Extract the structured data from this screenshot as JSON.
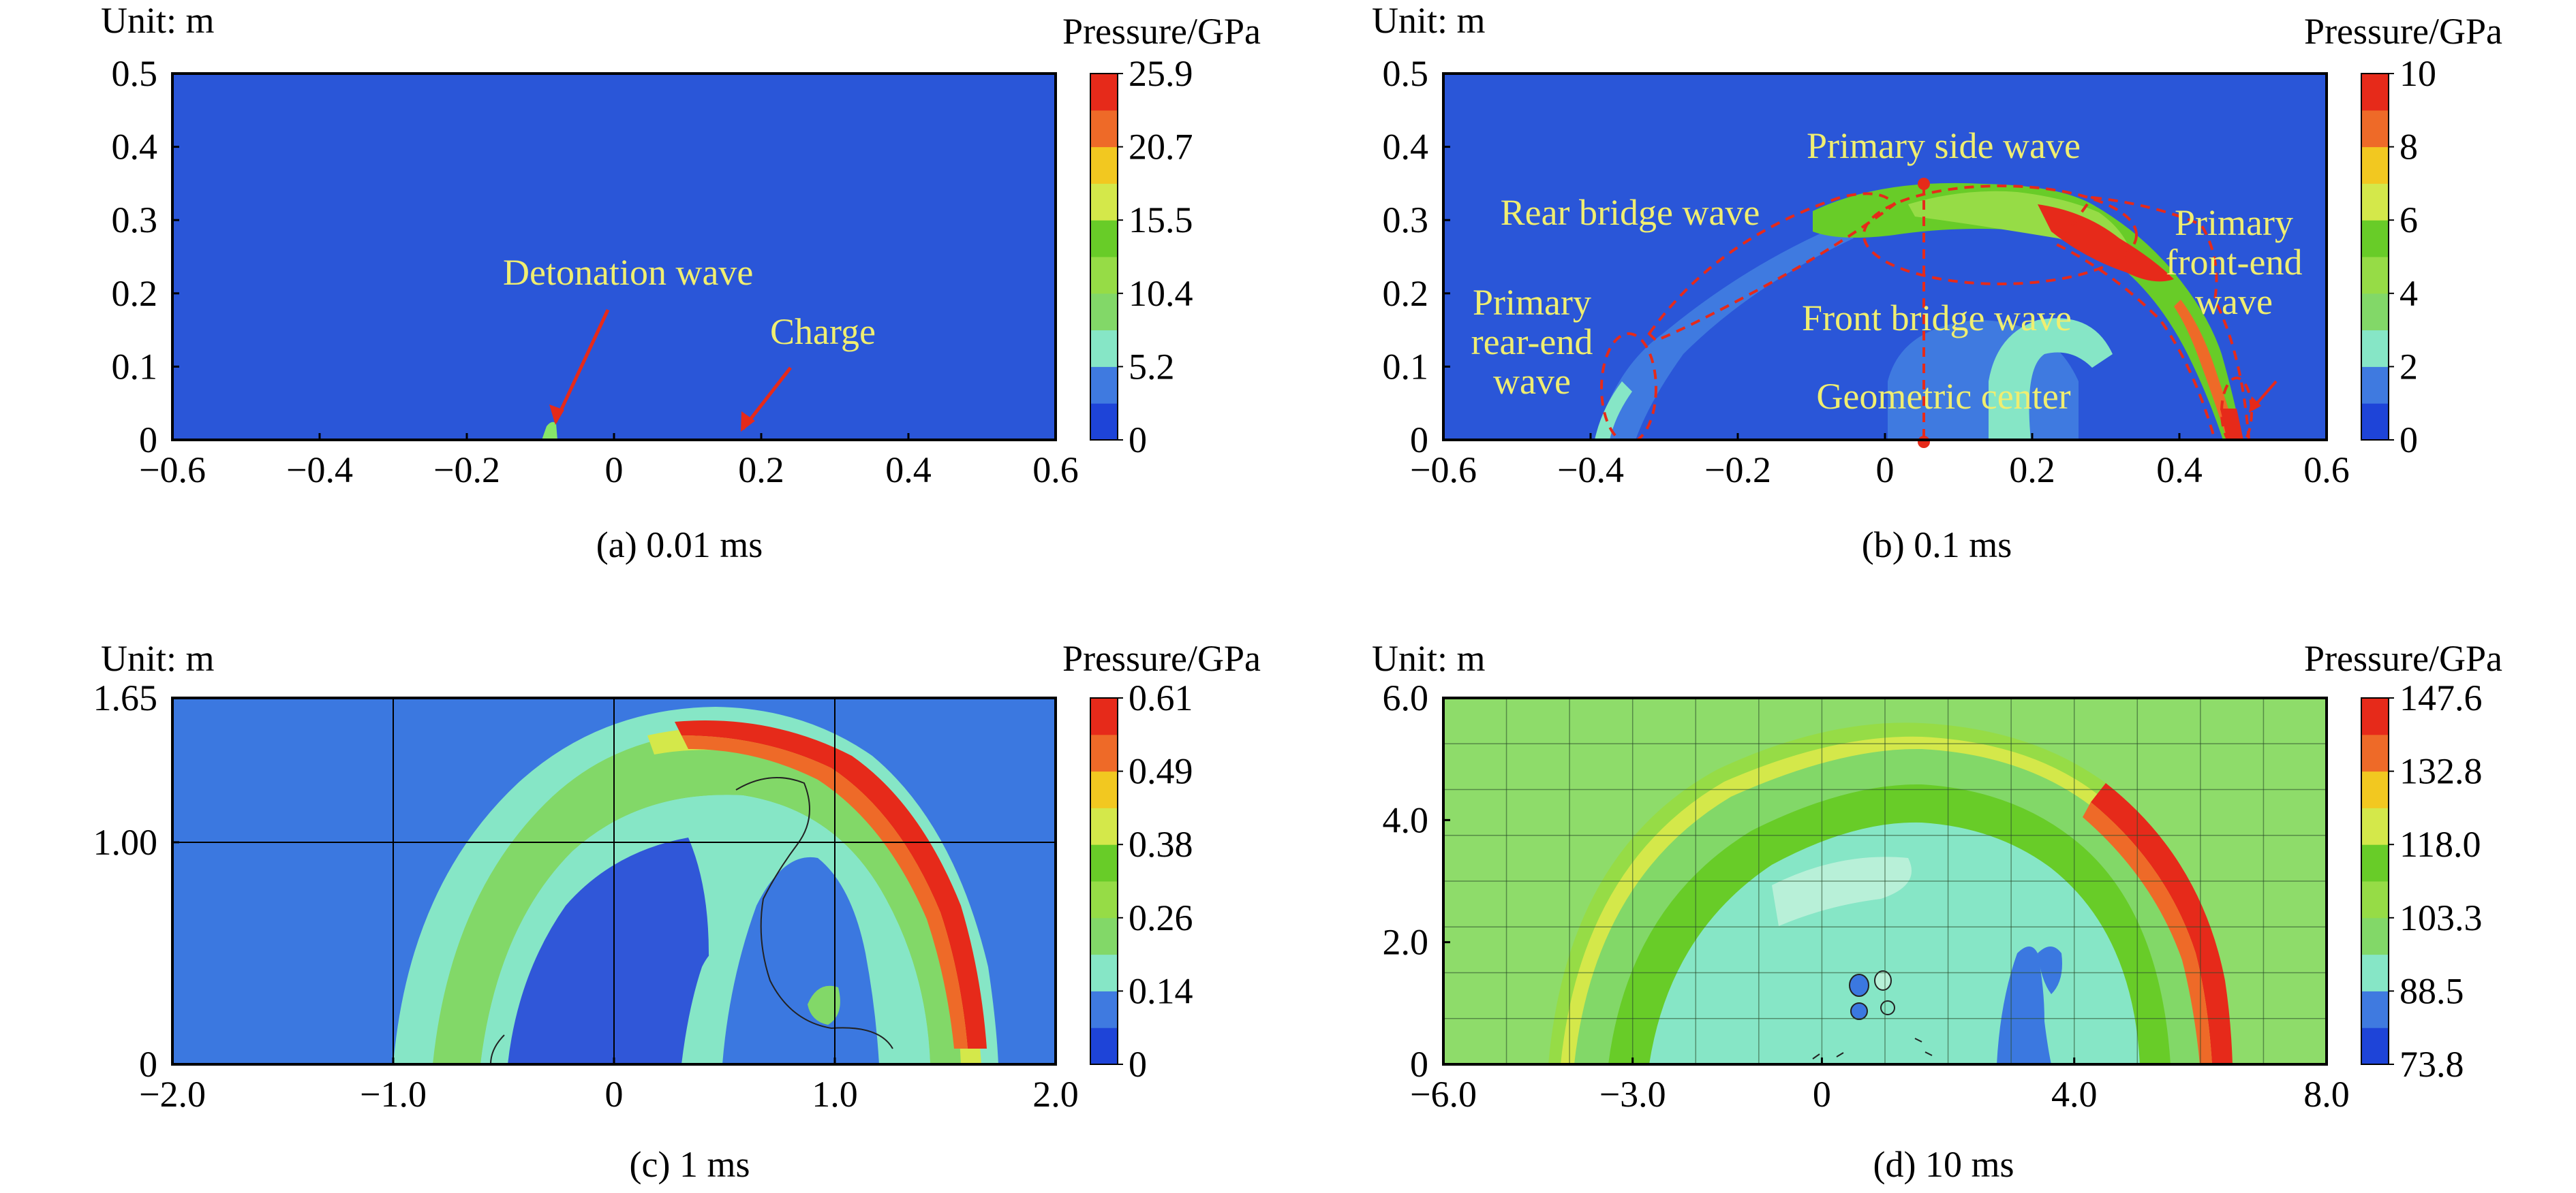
{
  "chart_data": [
    {
      "type": "heatmap",
      "caption": "(a) 0.01 ms",
      "unit_label": "Unit: m",
      "colorbar": {
        "title": "Pressure/GPa",
        "ticks": [
          "0",
          "5.2",
          "10.4",
          "15.5",
          "20.7",
          "25.9"
        ],
        "colors": [
          "#1e44d8",
          "#3f7ae0",
          "#86e6c6",
          "#82d868",
          "#96dc46",
          "#68cc28",
          "#d4e84a",
          "#f2c820",
          "#ee6a28",
          "#e62a1a"
        ]
      },
      "background_color": "#2a56d8",
      "xlim": [
        -0.6,
        0.6
      ],
      "ylim": [
        0,
        0.5
      ],
      "x_ticks": [
        "−0.6",
        "−0.4",
        "−0.2",
        "0",
        "0.2",
        "0.4",
        "0.6"
      ],
      "y_ticks": [
        "0",
        "0.1",
        "0.2",
        "0.3",
        "0.4",
        "0.5"
      ],
      "annotations": [
        {
          "text": "Detonation wave",
          "arrow_to": [
            -0.085,
            0.02
          ]
        },
        {
          "text": "Charge",
          "arrow_to": [
            0.165,
            0.01
          ]
        }
      ],
      "features": [
        {
          "name": "detonation-front",
          "x": -0.09,
          "y": 0.0,
          "level": "15.5"
        }
      ]
    },
    {
      "type": "heatmap",
      "caption": "(b) 0.1 ms",
      "unit_label": "Unit: m",
      "colorbar": {
        "title": "Pressure/GPa",
        "ticks": [
          "0",
          "2",
          "4",
          "6",
          "8",
          "10"
        ],
        "colors": [
          "#1e44d8",
          "#3f7ae0",
          "#86e6c6",
          "#82d868",
          "#96dc46",
          "#68cc28",
          "#d4e84a",
          "#f2c820",
          "#ee6a28",
          "#e62a1a"
        ]
      },
      "background_color": "#2a56d8",
      "xlim": [
        -0.6,
        0.6
      ],
      "ylim": [
        0,
        0.5
      ],
      "x_ticks": [
        "−0.6",
        "−0.4",
        "−0.2",
        "0",
        "0.2",
        "0.4",
        "0.6"
      ],
      "y_ticks": [
        "0",
        "0.1",
        "0.2",
        "0.3",
        "0.4",
        "0.5"
      ],
      "annotations": [
        {
          "text": "Primary side wave"
        },
        {
          "text": "Rear bridge wave"
        },
        {
          "text": "Primary front-end wave"
        },
        {
          "text": "Primary rear-end wave"
        },
        {
          "text": "Front bridge wave"
        },
        {
          "text": "Geometric center",
          "point": [
            0.05,
            0.35
          ]
        }
      ]
    },
    {
      "type": "heatmap",
      "caption": "(c) 1 ms",
      "unit_label": "Unit: m",
      "colorbar": {
        "title": "Pressure/GPa",
        "ticks": [
          "0",
          "0.14",
          "0.26",
          "0.38",
          "0.49",
          "0.61"
        ],
        "colors": [
          "#1e44d8",
          "#3f7ae0",
          "#86e6c6",
          "#82d868",
          "#96dc46",
          "#68cc28",
          "#d4e84a",
          "#f2c820",
          "#ee6a28",
          "#e62a1a"
        ]
      },
      "background_color": "#3b78e0",
      "xlim": [
        -2.0,
        2.0
      ],
      "ylim": [
        0,
        1.65
      ],
      "x_ticks": [
        "−2.0",
        "−1.0",
        "0",
        "1.0",
        "2.0"
      ],
      "y_ticks": [
        "0",
        "1.00",
        "1.65"
      ]
    },
    {
      "type": "heatmap",
      "caption": "(d) 10 ms",
      "unit_label": "Unit: m",
      "colorbar": {
        "title": "Pressure/GPa",
        "ticks": [
          "73.8",
          "88.5",
          "103.3",
          "118.0",
          "132.8",
          "147.6"
        ],
        "colors": [
          "#1e44d8",
          "#3f7ae0",
          "#86e6c6",
          "#82d868",
          "#96dc46",
          "#68cc28",
          "#d4e84a",
          "#f2c820",
          "#ee6a28",
          "#e62a1a"
        ]
      },
      "background_color": "#8edc6a",
      "xlim": [
        -6.0,
        8.0
      ],
      "ylim": [
        0,
        6.0
      ],
      "x_ticks": [
        "−6.0",
        "−3.0",
        "0",
        "4.0",
        "8.0"
      ],
      "y_ticks": [
        "0",
        "2.0",
        "4.0",
        "6.0"
      ]
    }
  ]
}
